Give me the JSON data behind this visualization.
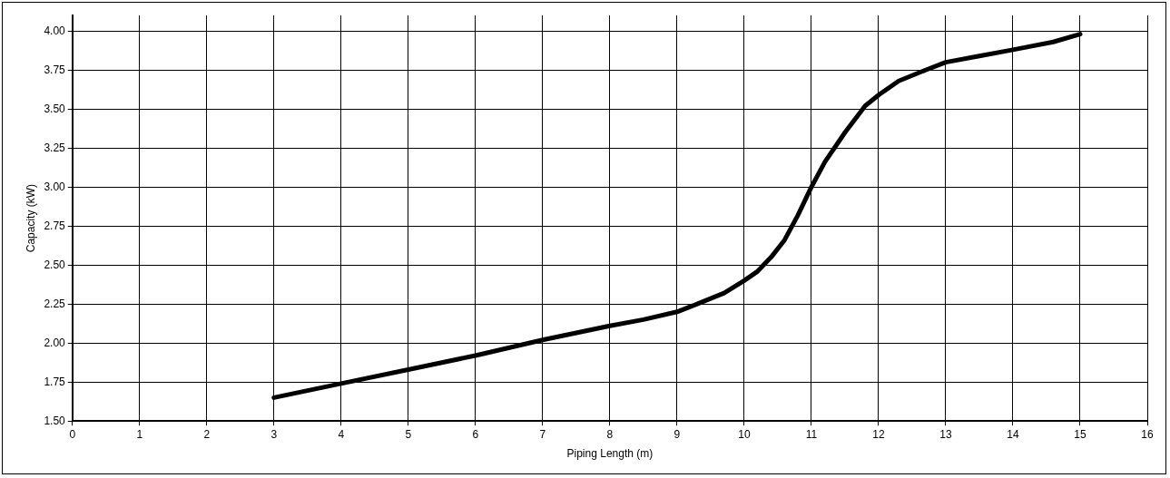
{
  "chart_data": {
    "type": "line",
    "xlabel": "Piping Length (m)",
    "ylabel": "Capacity (kW)",
    "x": [
      3,
      4,
      5,
      6,
      7,
      8,
      8.5,
      9,
      9.3,
      9.7,
      10,
      10.2,
      10.4,
      10.6,
      10.8,
      11,
      11.2,
      11.5,
      11.8,
      12,
      12.3,
      12.7,
      13,
      13.5,
      14,
      14.6,
      15
    ],
    "series": [
      {
        "color": "#000000",
        "values": [
          1.65,
          1.74,
          1.83,
          1.92,
          2.02,
          2.11,
          2.15,
          2.2,
          2.25,
          2.32,
          2.4,
          2.46,
          2.55,
          2.66,
          2.82,
          3.0,
          3.16,
          3.35,
          3.52,
          3.59,
          3.68,
          3.75,
          3.8,
          3.84,
          3.88,
          3.93,
          3.98
        ]
      }
    ],
    "xlim": [
      0,
      16
    ],
    "xticks": [
      0,
      1,
      2,
      3,
      4,
      5,
      6,
      7,
      8,
      9,
      10,
      11,
      12,
      13,
      14,
      15,
      16
    ],
    "ylim": [
      1.5,
      4.1
    ],
    "yticks": [
      {
        "value": 1.5,
        "label": "1.50"
      },
      {
        "value": 1.75,
        "label": "1.75"
      },
      {
        "value": 2,
        "label": "2.00"
      },
      {
        "value": 2.25,
        "label": "2.25"
      },
      {
        "value": 2.5,
        "label": "2.50"
      },
      {
        "value": 2.75,
        "label": "2.75"
      },
      {
        "value": 3,
        "label": "3.00"
      },
      {
        "value": 3.25,
        "label": "3.25"
      },
      {
        "value": 3.5,
        "label": "3.50"
      },
      {
        "value": 3.75,
        "label": "3.75"
      },
      {
        "value": 4,
        "label": "4.00"
      }
    ],
    "grid": true,
    "legend": false,
    "marker": "none",
    "line_style": "solid"
  }
}
